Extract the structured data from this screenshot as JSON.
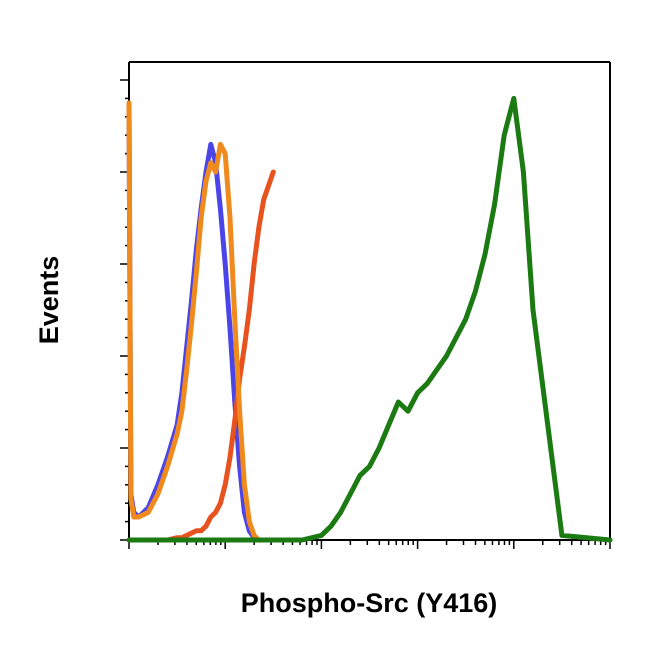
{
  "chart_data": {
    "type": "line",
    "title": "",
    "xlabel": "Phospho-Src (Y416)",
    "ylabel": "Events",
    "x_scale": "log",
    "xlim": [
      0,
      5
    ],
    "ylim": [
      0,
      100
    ],
    "grid": false,
    "legend": "none",
    "series": [
      {
        "color": "#4b45e8",
        "x": [
          0,
          0.02,
          0.05,
          0.1,
          0.2,
          0.3,
          0.4,
          0.5,
          0.55,
          0.6,
          0.65,
          0.7,
          0.75,
          0.8,
          0.85,
          0.9,
          0.95,
          1.0,
          1.05,
          1.1,
          1.15,
          1.2,
          1.25,
          1.3,
          1.35,
          1.4,
          1.5
        ],
        "y": [
          95,
          10,
          6,
          5,
          7,
          12,
          18,
          25,
          32,
          42,
          52,
          63,
          72,
          80,
          86,
          82,
          72,
          60,
          46,
          30,
          16,
          6,
          2,
          0.5,
          0,
          0,
          0
        ]
      },
      {
        "color": "#e8521f",
        "x": [
          0,
          0.02,
          0.05,
          0.1,
          0.2,
          0.3,
          0.4,
          0.5,
          0.55,
          0.6,
          0.65,
          0.7,
          0.75,
          0.8,
          0.85,
          0.9,
          0.95,
          1.0,
          1.05,
          1.1,
          1.15,
          1.2,
          1.25,
          1.3,
          1.35,
          1.4,
          1.5
        ],
        "y": [
          0,
          0,
          0,
          0,
          0,
          0,
          0,
          0.5,
          0.5,
          1,
          1.5,
          2,
          2,
          3,
          5,
          6,
          8,
          12,
          18,
          26,
          35,
          42,
          50,
          60,
          68,
          74,
          80
        ]
      },
      {
        "color": "#f08a1c",
        "x": [
          0,
          0.02,
          0.05,
          0.1,
          0.2,
          0.3,
          0.4,
          0.5,
          0.55,
          0.6,
          0.65,
          0.7,
          0.75,
          0.8,
          0.85,
          0.9,
          0.95,
          1.0,
          1.05,
          1.1,
          1.15,
          1.2,
          1.25,
          1.3,
          1.35,
          1.4,
          1.5
        ],
        "y": [
          95,
          9,
          5,
          5,
          6,
          10,
          16,
          23,
          28,
          37,
          47,
          58,
          70,
          78,
          82,
          80,
          86,
          84,
          70,
          48,
          28,
          12,
          4,
          1,
          0,
          0,
          0
        ]
      },
      {
        "color": "#1b7a12",
        "x": [
          0,
          0.1,
          0.5,
          1.0,
          1.5,
          1.8,
          2.0,
          2.1,
          2.2,
          2.3,
          2.4,
          2.5,
          2.6,
          2.7,
          2.8,
          2.9,
          3.0,
          3.1,
          3.2,
          3.3,
          3.4,
          3.5,
          3.6,
          3.7,
          3.8,
          3.9,
          4.0,
          4.1,
          4.2,
          4.5,
          5.0
        ],
        "y": [
          0,
          0,
          0,
          0,
          0,
          0,
          1,
          3,
          6,
          10,
          14,
          16,
          20,
          25,
          30,
          28,
          32,
          34,
          37,
          40,
          44,
          48,
          54,
          62,
          73,
          88,
          96,
          80,
          50,
          1,
          0
        ]
      }
    ]
  }
}
